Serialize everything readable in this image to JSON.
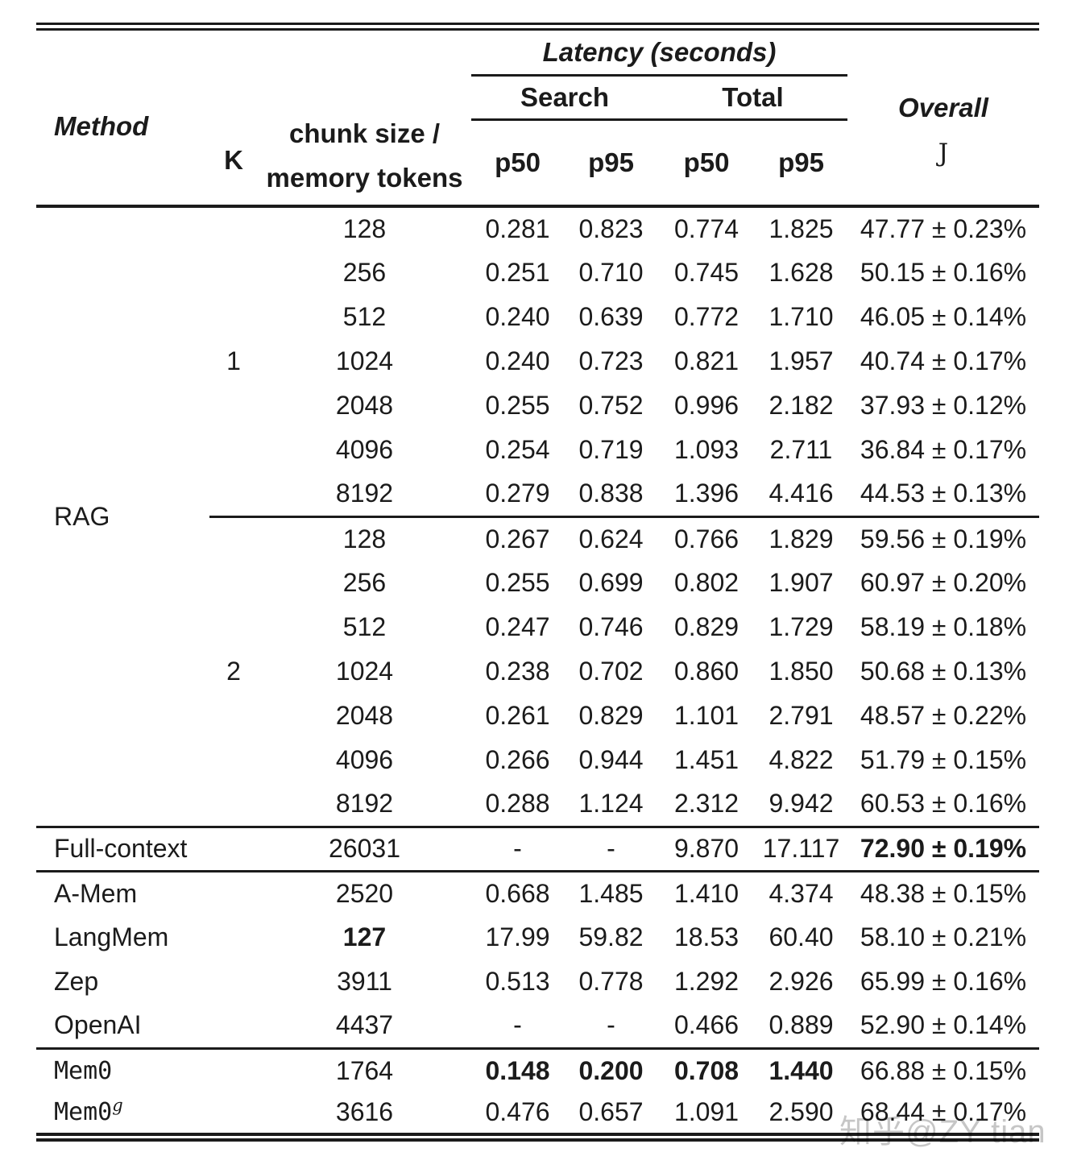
{
  "watermark": "知乎@ZY tian",
  "colors": {
    "text": "#1b1b1b",
    "rules": "#1b1b1b",
    "watermark_gray": "#c6c6c6"
  },
  "table": {
    "headers": {
      "method": "Method",
      "k": "K",
      "chunk_line1": "chunk size /",
      "chunk_line2": "memory tokens",
      "latency_group": "Latency (seconds)",
      "search_group": "Search",
      "total_group": "Total",
      "search_p50": "p50",
      "search_p95": "p95",
      "total_p50": "p50",
      "total_p95": "p95",
      "overall": "Overall",
      "overall_metric": "J"
    },
    "rag": {
      "method": "RAG",
      "k1": {
        "k": "1",
        "rows": [
          {
            "chunk": "128",
            "search_p50": "0.281",
            "search_p95": "0.823",
            "total_p50": "0.774",
            "total_p95": "1.825",
            "overall": "47.77 ± 0.23%"
          },
          {
            "chunk": "256",
            "search_p50": "0.251",
            "search_p95": "0.710",
            "total_p50": "0.745",
            "total_p95": "1.628",
            "overall": "50.15 ± 0.16%"
          },
          {
            "chunk": "512",
            "search_p50": "0.240",
            "search_p95": "0.639",
            "total_p50": "0.772",
            "total_p95": "1.710",
            "overall": "46.05 ± 0.14%"
          },
          {
            "chunk": "1024",
            "search_p50": "0.240",
            "search_p95": "0.723",
            "total_p50": "0.821",
            "total_p95": "1.957",
            "overall": "40.74 ± 0.17%"
          },
          {
            "chunk": "2048",
            "search_p50": "0.255",
            "search_p95": "0.752",
            "total_p50": "0.996",
            "total_p95": "2.182",
            "overall": "37.93 ± 0.12%"
          },
          {
            "chunk": "4096",
            "search_p50": "0.254",
            "search_p95": "0.719",
            "total_p50": "1.093",
            "total_p95": "2.711",
            "overall": "36.84 ± 0.17%"
          },
          {
            "chunk": "8192",
            "search_p50": "0.279",
            "search_p95": "0.838",
            "total_p50": "1.396",
            "total_p95": "4.416",
            "overall": "44.53 ± 0.13%"
          }
        ]
      },
      "k2": {
        "k": "2",
        "rows": [
          {
            "chunk": "128",
            "search_p50": "0.267",
            "search_p95": "0.624",
            "total_p50": "0.766",
            "total_p95": "1.829",
            "overall": "59.56 ± 0.19%"
          },
          {
            "chunk": "256",
            "search_p50": "0.255",
            "search_p95": "0.699",
            "total_p50": "0.802",
            "total_p95": "1.907",
            "overall": "60.97 ± 0.20%"
          },
          {
            "chunk": "512",
            "search_p50": "0.247",
            "search_p95": "0.746",
            "total_p50": "0.829",
            "total_p95": "1.729",
            "overall": "58.19 ± 0.18%"
          },
          {
            "chunk": "1024",
            "search_p50": "0.238",
            "search_p95": "0.702",
            "total_p50": "0.860",
            "total_p95": "1.850",
            "overall": "50.68 ± 0.13%"
          },
          {
            "chunk": "2048",
            "search_p50": "0.261",
            "search_p95": "0.829",
            "total_p50": "1.101",
            "total_p95": "2.791",
            "overall": "48.57 ± 0.22%"
          },
          {
            "chunk": "4096",
            "search_p50": "0.266",
            "search_p95": "0.944",
            "total_p50": "1.451",
            "total_p95": "4.822",
            "overall": "51.79 ± 0.15%"
          },
          {
            "chunk": "8192",
            "search_p50": "0.288",
            "search_p95": "1.124",
            "total_p50": "2.312",
            "total_p95": "9.942",
            "overall": "60.53 ± 0.16%"
          }
        ]
      }
    },
    "full_context": {
      "method": "Full-context",
      "chunk": "26031",
      "search_p50": "-",
      "search_p95": "-",
      "total_p50": "9.870",
      "total_p95": "17.117",
      "overall": "72.90 ± 0.19%"
    },
    "a_mem": {
      "method": "A-Mem",
      "chunk": "2520",
      "search_p50": "0.668",
      "search_p95": "1.485",
      "total_p50": "1.410",
      "total_p95": "4.374",
      "overall": "48.38 ± 0.15%"
    },
    "langmem": {
      "method": "LangMem",
      "chunk": "127",
      "search_p50": "17.99",
      "search_p95": "59.82",
      "total_p50": "18.53",
      "total_p95": "60.40",
      "overall": "58.10 ± 0.21%"
    },
    "zep": {
      "method": "Zep",
      "chunk": "3911",
      "search_p50": "0.513",
      "search_p95": "0.778",
      "total_p50": "1.292",
      "total_p95": "2.926",
      "overall": "65.99 ± 0.16%"
    },
    "openai": {
      "method": "OpenAI",
      "chunk": "4437",
      "search_p50": "-",
      "search_p95": "-",
      "total_p50": "0.466",
      "total_p95": "0.889",
      "overall": "52.90 ± 0.14%"
    },
    "mem0": {
      "method": "Mem0",
      "chunk": "1764",
      "search_p50": "0.148",
      "search_p95": "0.200",
      "total_p50": "0.708",
      "total_p95": "1.440",
      "overall": "66.88 ± 0.15%"
    },
    "mem0g": {
      "method": "Mem0",
      "method_sup": "g",
      "chunk": "3616",
      "search_p50": "0.476",
      "search_p95": "0.657",
      "total_p50": "1.091",
      "total_p95": "2.590",
      "overall": "68.44 ± 0.17%"
    }
  }
}
